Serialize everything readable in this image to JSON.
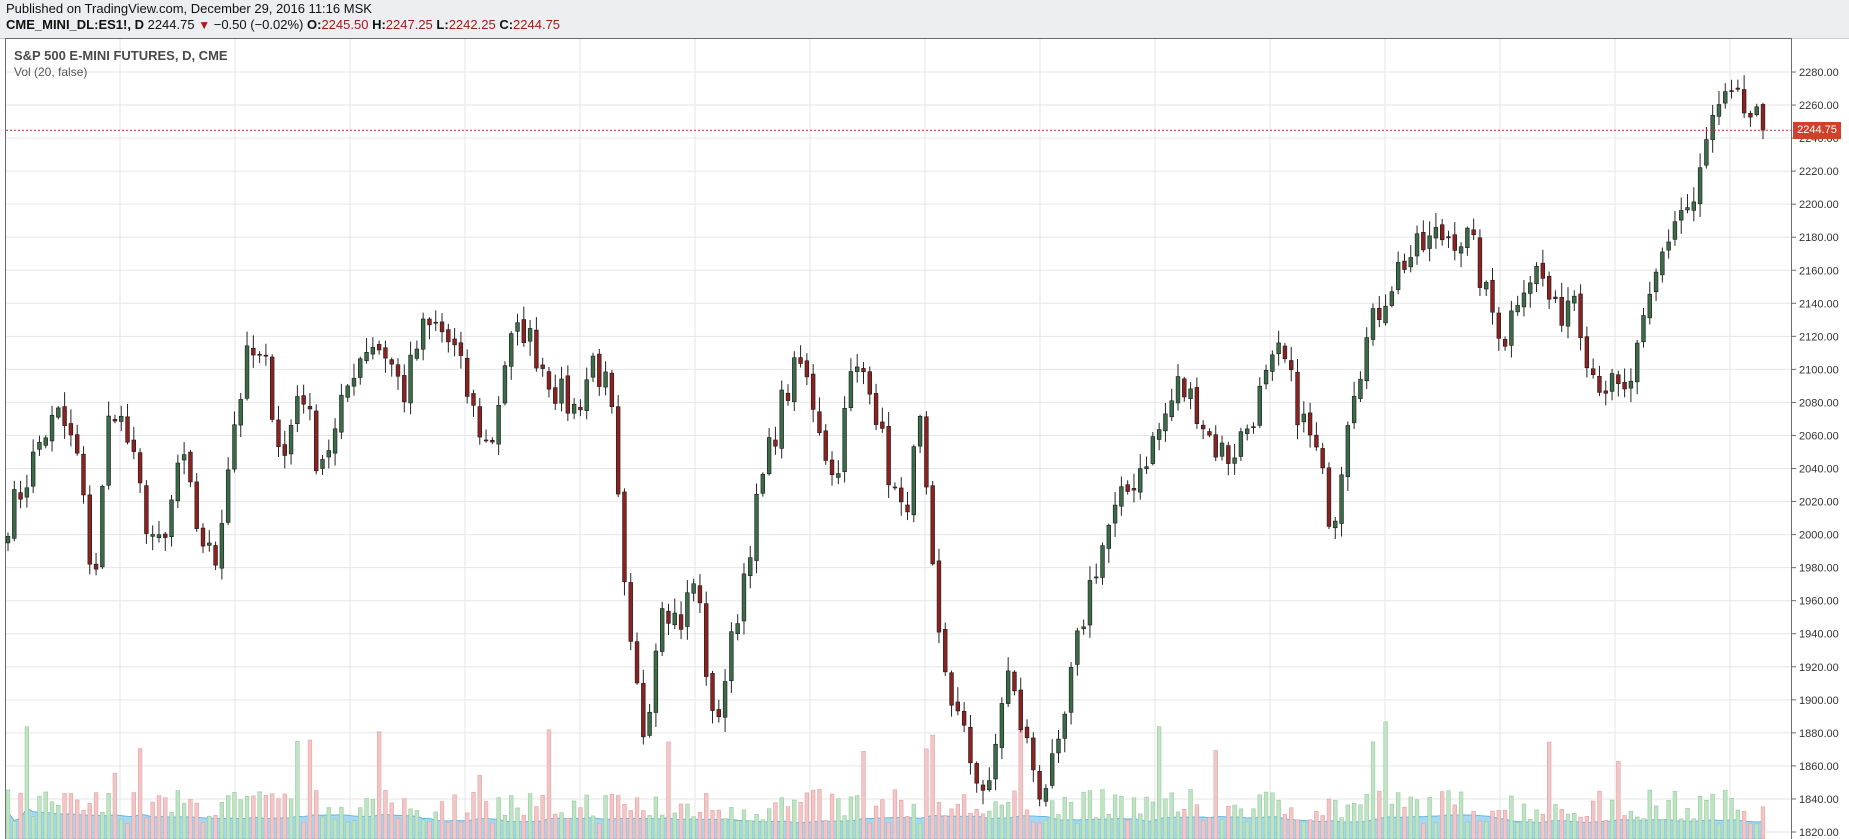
{
  "header": {
    "published": "Published on TradingView.com, December 29, 2016 11:16 MSK",
    "symbol": "CME_MINI_DL:ES1!, D",
    "last": "2244.75",
    "change": "−0.50 (−0.02%)",
    "o_label": "O:",
    "o_value": "2245.50",
    "h_label": "H:",
    "h_value": "2247.25",
    "l_label": "L:",
    "l_value": "2242.25",
    "c_label": "C:",
    "c_value": "2244.75"
  },
  "legend": {
    "title": "S&P 500 E-MINI FUTURES, D, CME",
    "volume": "Vol (20, false)"
  },
  "colors": {
    "up": "#3b6b47",
    "down": "#8b2121",
    "vol_up": "#bfe3c3",
    "vol_down": "#f2c6c6",
    "vol_ma": "#8fd0f0",
    "grid": "#e6e6e6",
    "last_price_line": "#b33"
  },
  "chart_data": {
    "type": "candlestick",
    "title": "S&P 500 E-MINI FUTURES, D, CME",
    "ylabel": "",
    "ylim": [
      1810,
      2290
    ],
    "yticks": [
      1820,
      1840,
      1860,
      1880,
      1900,
      1920,
      1940,
      1960,
      1980,
      2000,
      2020,
      2040,
      2060,
      2080,
      2100,
      2120,
      2140,
      2160,
      2180,
      2200,
      2220,
      2240,
      2260,
      2280
    ],
    "last_price": 2244.75,
    "last_price_label": "2244.75",
    "close_path": [
      2010,
      2032,
      2060,
      2072,
      2048,
      1968,
      2085,
      2055,
      2010,
      1985,
      2050,
      2005,
      1980,
      2060,
      2110,
      2100,
      2042,
      2095,
      2044,
      2060,
      2100,
      2118,
      2110,
      2085,
      2122,
      2126,
      2110,
      2075,
      2050,
      2112,
      2125,
      2104,
      2085,
      2075,
      2106,
      2083,
      1938,
      1878,
      1965,
      1945,
      1975,
      1880,
      1930,
      1990,
      2040,
      2080,
      2104,
      2075,
      2030,
      2095,
      2100,
      2045,
      2008,
      2065,
      1940,
      1895,
      1862,
      1840,
      1920,
      1880,
      1845,
      1862,
      1925,
      1975,
      2005,
      2025,
      2045,
      2065,
      2090,
      2080,
      2055,
      2047,
      2065,
      2090,
      2110,
      2075,
      2050,
      2005,
      2085,
      2118,
      2145,
      2165,
      2172,
      2180,
      2182,
      2178,
      2140,
      2120,
      2155,
      2160,
      2130,
      2150,
      2100,
      2090,
      2082,
      2120,
      2165,
      2195,
      2200,
      2250,
      2262,
      2256,
      2244.75
    ],
    "volume_max": 1
  }
}
